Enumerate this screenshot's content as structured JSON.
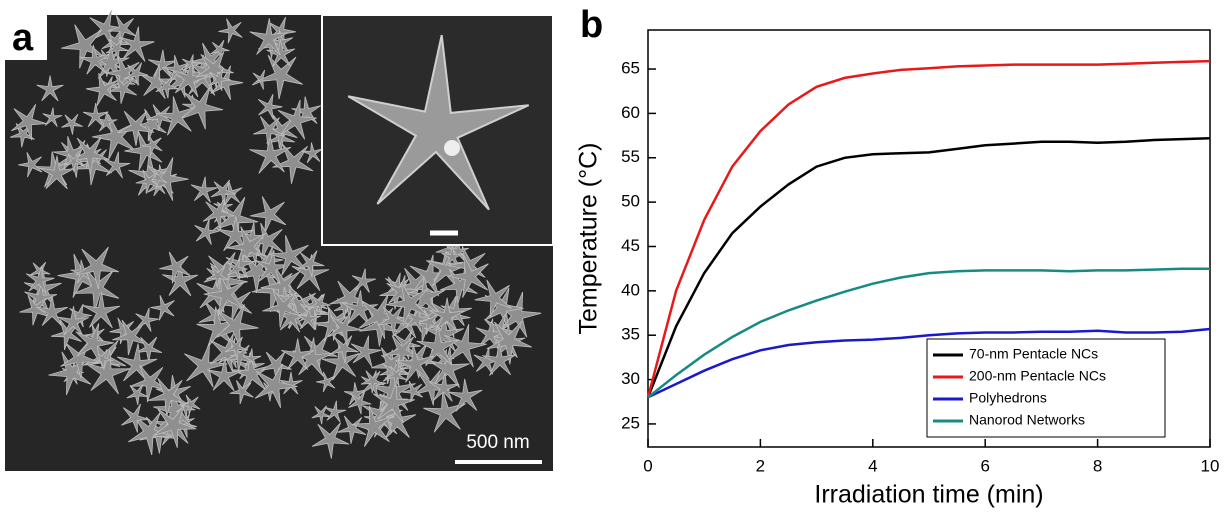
{
  "image_panel": {
    "label": "a",
    "scale_bar": "500 nm"
  },
  "chart_data": {
    "type": "line",
    "panel_label": "b",
    "x_label": "Irradiation time (min)",
    "y_label": "Temperature (°C)",
    "x": [
      0,
      0.5,
      1,
      1.5,
      2,
      2.5,
      3,
      3.5,
      4,
      4.5,
      5,
      5.5,
      6,
      6.5,
      7,
      7.5,
      8,
      8.5,
      9,
      9.5,
      10
    ],
    "series": [
      {
        "name": "70-nm Pentacle NCs",
        "color": "#000000",
        "values": [
          28,
          36,
          42,
          46.5,
          49.5,
          52,
          54,
          55,
          55.4,
          55.5,
          55.6,
          56,
          56.4,
          56.6,
          56.8,
          56.8,
          56.7,
          56.8,
          57,
          57.1,
          57.2
        ]
      },
      {
        "name": "200-nm Pentacle NCs",
        "color": "#e8191b",
        "values": [
          28,
          40,
          48,
          54,
          58,
          61,
          63,
          64,
          64.5,
          64.9,
          65.1,
          65.3,
          65.4,
          65.5,
          65.5,
          65.5,
          65.5,
          65.6,
          65.7,
          65.8,
          65.9
        ]
      },
      {
        "name": "Polyhedrons",
        "color": "#1a1acb",
        "values": [
          28,
          29.5,
          31,
          32.3,
          33.3,
          33.9,
          34.2,
          34.4,
          34.5,
          34.7,
          35,
          35.2,
          35.3,
          35.3,
          35.4,
          35.4,
          35.5,
          35.3,
          35.3,
          35.4,
          35.7
        ]
      },
      {
        "name": "Nanorod Networks",
        "color": "#178a84",
        "values": [
          28,
          30.5,
          32.8,
          34.8,
          36.5,
          37.8,
          38.9,
          39.9,
          40.8,
          41.5,
          42,
          42.2,
          42.3,
          42.3,
          42.3,
          42.2,
          42.3,
          42.3,
          42.4,
          42.5,
          42.5
        ]
      }
    ],
    "xlim": [
      0,
      10
    ],
    "xticks": [
      0,
      2,
      4,
      6,
      8,
      10
    ],
    "ylim": [
      22.4,
      69.4
    ],
    "yticks": [
      25,
      30,
      35,
      40,
      45,
      50,
      55,
      60,
      65
    ],
    "legend": "lower right"
  }
}
